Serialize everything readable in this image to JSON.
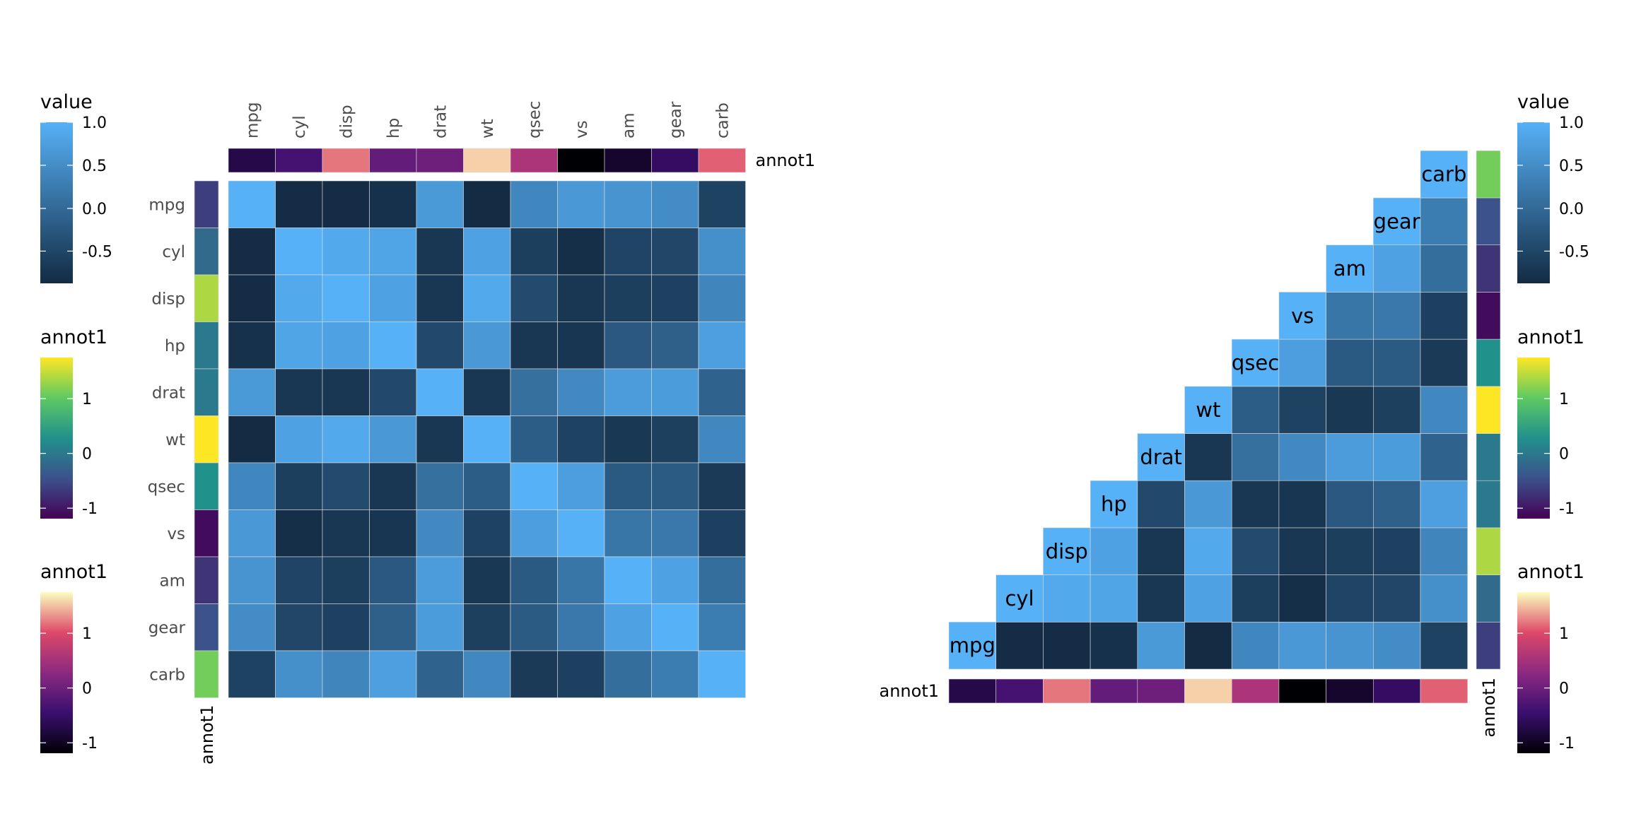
{
  "chart_data": [
    {
      "type": "heatmap",
      "variables": [
        "mpg",
        "cyl",
        "disp",
        "hp",
        "drat",
        "wt",
        "qsec",
        "vs",
        "am",
        "gear",
        "carb"
      ],
      "values": [
        [
          1.0,
          -0.85,
          -0.85,
          -0.78,
          0.68,
          -0.87,
          0.42,
          0.66,
          0.6,
          0.48,
          -0.55
        ],
        [
          -0.85,
          1.0,
          0.9,
          0.83,
          -0.7,
          0.78,
          -0.59,
          -0.81,
          -0.52,
          -0.49,
          0.53
        ],
        [
          -0.85,
          0.9,
          1.0,
          0.79,
          -0.71,
          0.89,
          -0.43,
          -0.71,
          -0.59,
          -0.56,
          0.39
        ],
        [
          -0.78,
          0.83,
          0.79,
          1.0,
          -0.45,
          0.66,
          -0.71,
          -0.72,
          -0.24,
          -0.13,
          0.75
        ],
        [
          0.68,
          -0.7,
          -0.71,
          -0.45,
          1.0,
          -0.71,
          0.09,
          0.44,
          0.71,
          0.7,
          -0.09
        ],
        [
          -0.87,
          0.78,
          0.89,
          0.66,
          -0.71,
          1.0,
          -0.17,
          -0.55,
          -0.69,
          -0.58,
          0.43
        ],
        [
          0.42,
          -0.59,
          -0.43,
          -0.71,
          0.09,
          -0.17,
          1.0,
          0.74,
          -0.23,
          -0.21,
          -0.66
        ],
        [
          0.66,
          -0.81,
          -0.71,
          -0.72,
          0.44,
          -0.55,
          0.74,
          1.0,
          0.17,
          0.21,
          -0.57
        ],
        [
          0.6,
          -0.52,
          -0.59,
          -0.24,
          0.71,
          -0.69,
          -0.23,
          0.17,
          1.0,
          0.79,
          0.06
        ],
        [
          0.48,
          -0.49,
          -0.56,
          -0.13,
          0.7,
          -0.58,
          -0.21,
          0.21,
          0.79,
          1.0,
          0.27
        ],
        [
          -0.55,
          0.53,
          0.39,
          0.75,
          -0.09,
          0.43,
          -0.66,
          -0.57,
          0.06,
          0.27,
          1.0
        ]
      ],
      "row_annotation": {
        "name": "annot1",
        "values": [
          -0.7,
          -0.2,
          1.5,
          0.0,
          0.0,
          1.9,
          0.3,
          -1.2,
          -0.8,
          -0.5,
          1.2
        ]
      },
      "col_annotation": {
        "name": "annot1",
        "values": [
          -0.8,
          -0.4,
          1.3,
          -0.1,
          0.0,
          1.7,
          0.6,
          -1.3,
          -1.0,
          -0.6,
          1.2
        ]
      },
      "legends": [
        {
          "title": "value",
          "ticks": [
            "1.0",
            "0.5",
            "0.0",
            "-0.5"
          ],
          "range": [
            -0.87,
            1.0
          ]
        },
        {
          "title": "annot1",
          "ticks": [
            "1",
            "0",
            "-1"
          ],
          "range": [
            -1.3,
            1.9
          ],
          "palette": "viridis"
        },
        {
          "title": "annot1",
          "ticks": [
            "1",
            "0",
            "-1"
          ],
          "range": [
            -1.3,
            1.9
          ],
          "palette": "magma"
        }
      ]
    },
    {
      "type": "heatmap",
      "layout": "lower-triangle",
      "variables": [
        "mpg",
        "cyl",
        "disp",
        "hp",
        "drat",
        "wt",
        "qsec",
        "vs",
        "am",
        "gear",
        "carb"
      ],
      "note": "same correlation matrix as the left heatmap",
      "row_annotation": {
        "name": "annot1",
        "values": [
          -0.7,
          -0.2,
          1.5,
          0.0,
          0.0,
          1.9,
          0.3,
          -1.2,
          -0.8,
          -0.5,
          1.2
        ]
      },
      "col_annotation": {
        "name": "annot1",
        "values": [
          -0.8,
          -0.4,
          1.3,
          -0.1,
          0.0,
          1.7,
          0.6,
          -1.3,
          -1.0,
          -0.6,
          1.2
        ]
      },
      "legends": [
        {
          "title": "value",
          "ticks": [
            "1.0",
            "0.5",
            "0.0",
            "-0.5"
          ]
        },
        {
          "title": "annot1",
          "ticks": [
            "1",
            "0",
            "-1"
          ]
        },
        {
          "title": "annot1",
          "ticks": [
            "1",
            "0",
            "-1"
          ]
        }
      ]
    }
  ],
  "colors": {
    "value_low": "#132b43",
    "value_high": "#56b1f7",
    "grid_line": "#dddddd",
    "text": "#000000",
    "label_gray": "#4d4d4d"
  }
}
